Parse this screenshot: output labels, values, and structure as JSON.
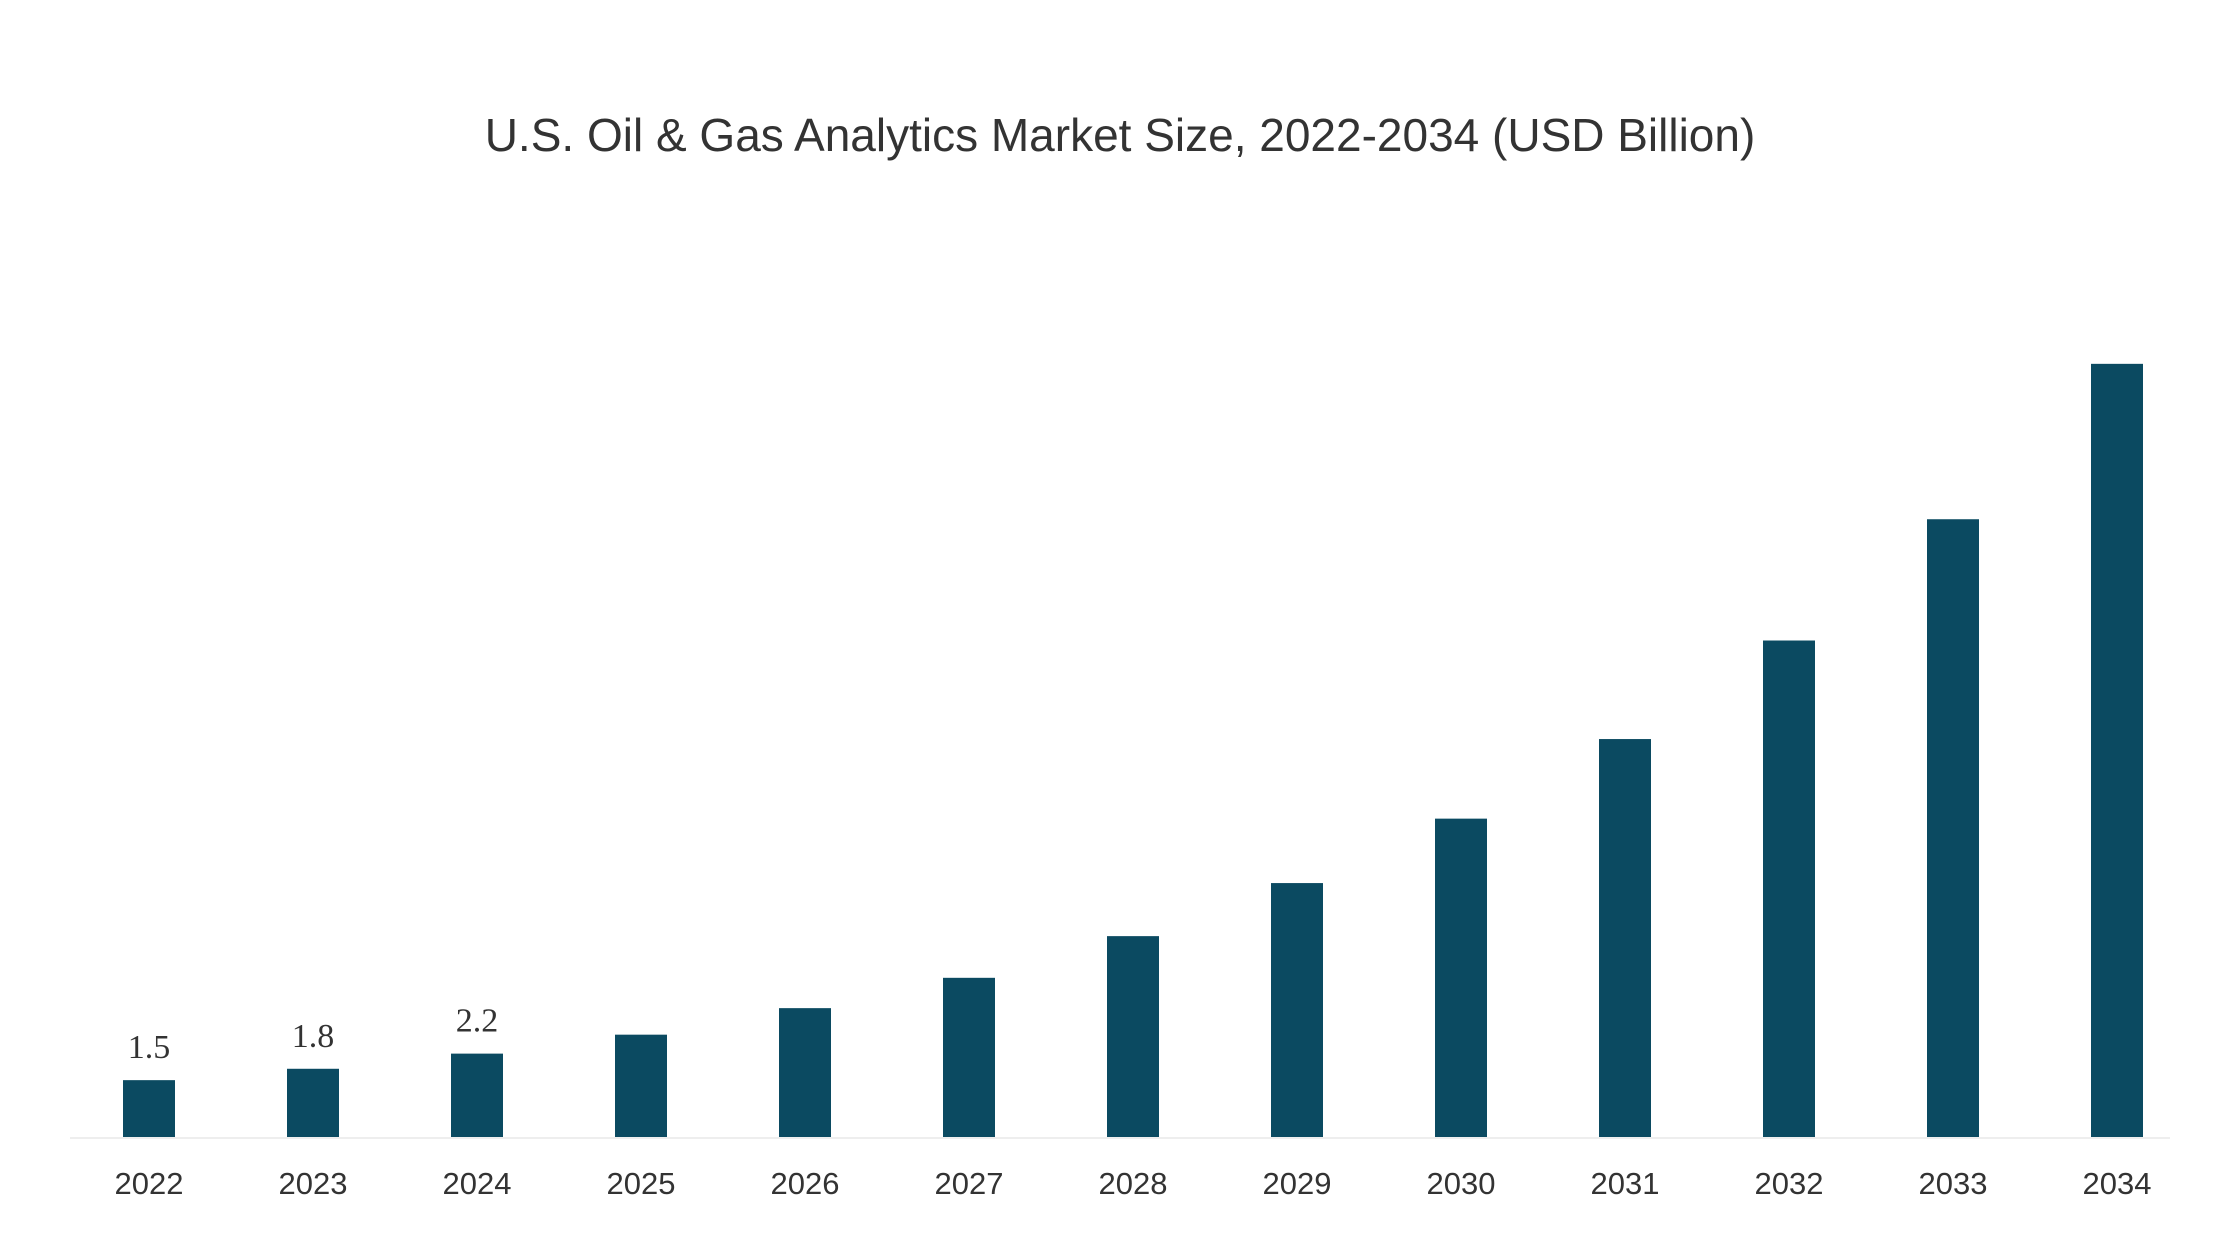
{
  "chart_data": {
    "type": "bar",
    "title": "U.S. Oil & Gas Analytics Market Size, 2022-2034 (USD Billion)",
    "xlabel": "",
    "ylabel": "",
    "categories": [
      "2022",
      "2023",
      "2024",
      "2025",
      "2026",
      "2027",
      "2028",
      "2029",
      "2030",
      "2031",
      "2032",
      "2033",
      "2034"
    ],
    "values": [
      1.5,
      1.8,
      2.2,
      2.7,
      3.4,
      4.2,
      5.3,
      6.7,
      8.4,
      10.5,
      13.1,
      16.3,
      20.4
    ],
    "data_labels": [
      "1.5",
      "1.8",
      "2.2",
      null,
      null,
      null,
      null,
      null,
      null,
      null,
      null,
      null,
      null
    ],
    "ylim": [
      0,
      21
    ],
    "grid": false,
    "legend": "none",
    "bar_color": "#0b4a61"
  }
}
